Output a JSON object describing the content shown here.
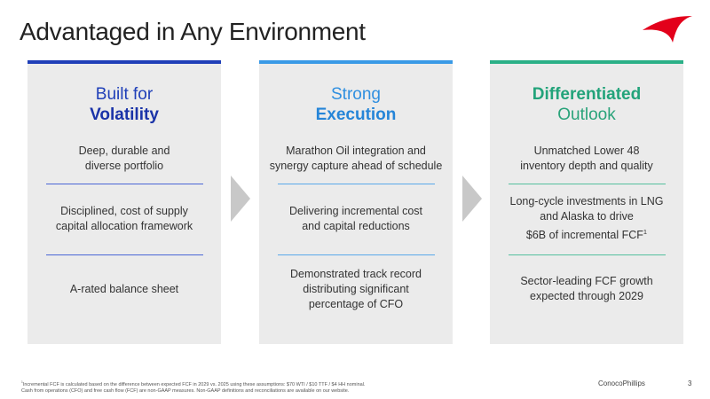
{
  "title": "Advantaged in Any Environment",
  "cards": [
    {
      "heading": [
        "Built for",
        "Volatility"
      ],
      "items": [
        [
          "Deep, durable and",
          "diverse portfolio"
        ],
        [
          "Disciplined, cost of supply",
          "capital allocation framework"
        ],
        [
          "A-rated balance sheet"
        ]
      ]
    },
    {
      "heading": [
        "Strong",
        "Execution"
      ],
      "items": [
        [
          "Marathon Oil integration and",
          "synergy capture ahead of schedule"
        ],
        [
          "Delivering incremental cost",
          "and capital reductions"
        ],
        [
          "Demonstrated track record",
          "distributing significant",
          "percentage of CFO"
        ]
      ]
    },
    {
      "heading": [
        "Differentiated",
        "Outlook"
      ],
      "items": [
        [
          "Unmatched Lower 48",
          "inventory depth and quality"
        ],
        [
          "Long-cycle investments in LNG",
          "and Alaska to drive",
          "$6B of incremental FCF"
        ],
        [
          "Sector-leading FCF growth",
          "expected through 2029"
        ]
      ],
      "item_note": "1"
    }
  ],
  "footnote": {
    "mark": "1",
    "lines": [
      "Incremental FCF is calculated based on the difference between expected FCF in 2029 vs. 2025 using these assumptions: $70 WTI / $10 TTF / $4 HH nominal.",
      "Cash from operations (CFO) and free cash flow (FCF) are non-GAAP measures. Non-GAAP definitions and reconciliations are available on our website."
    ]
  },
  "footer": {
    "company": "ConocoPhillips",
    "page": "3"
  }
}
